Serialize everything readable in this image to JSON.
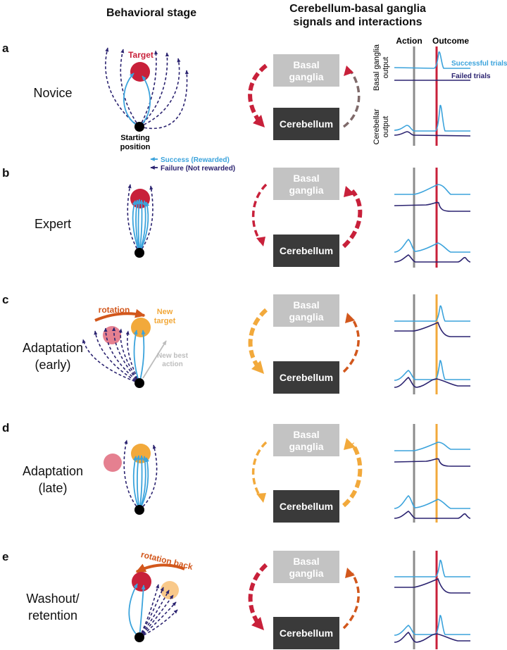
{
  "headers": {
    "behavioral": "Behavioral stage",
    "signals_line1": "Cerebellum-basal ganglia",
    "signals_line2": "signals and interactions"
  },
  "trace_headers": {
    "action": "Action",
    "outcome": "Outcome"
  },
  "boxes": {
    "bg_line1": "Basal",
    "bg_line2": "ganglia",
    "cb": "Cerebellum"
  },
  "annotations": {
    "target": "Target",
    "start_line1": "Starting",
    "start_line2": "position",
    "legend_success": "Success (Rewarded)",
    "legend_failure": "Failure (Not rewarded)",
    "rotation": "rotation",
    "new_target_line1": "New",
    "new_target_line2": "target",
    "new_best_line1": "New best",
    "new_best_line2": "action",
    "rotation_back": "rotation back"
  },
  "trace_labels": {
    "bg_line1": "Basal ganglia",
    "bg_line2": "output",
    "cb_line1": "Cerebellar",
    "cb_line2": "output",
    "successful": "Successful trials",
    "failed": "Failed trials"
  },
  "panels": [
    {
      "letter": "a",
      "stage_line1": "Novice",
      "stage_line2": "",
      "outcome_color": "#c8203a"
    },
    {
      "letter": "b",
      "stage_line1": "Expert",
      "stage_line2": "",
      "outcome_color": "#c8203a"
    },
    {
      "letter": "c",
      "stage_line1": "Adaptation",
      "stage_line2": "(early)",
      "outcome_color": "#f2a93b"
    },
    {
      "letter": "d",
      "stage_line1": "Adaptation",
      "stage_line2": "(late)",
      "outcome_color": "#f2a93b"
    },
    {
      "letter": "e",
      "stage_line1": "Washout/",
      "stage_line2": "retention",
      "outcome_color": "#c8203a"
    }
  ],
  "colors": {
    "success": "#3ba3dc",
    "failure": "#2b2370",
    "red": "#c8203a",
    "orange": "#f2a93b",
    "bg_box": "#c3c3c3",
    "cb_box": "#3a3a3a",
    "action_line": "#8c8c8c"
  }
}
